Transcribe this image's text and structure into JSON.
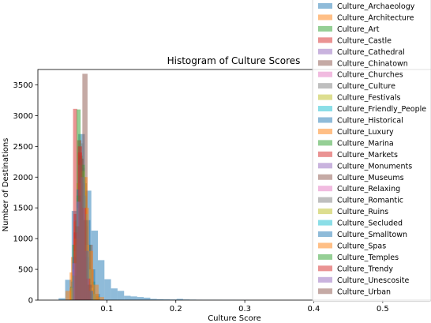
{
  "chart_data": {
    "type": "bar",
    "subtype": "overlaid-histogram",
    "title": "Histogram of Culture Scores",
    "xlabel": "Culture Score",
    "ylabel": "Number of Destinations",
    "xlim": [
      0.0,
      0.57
    ],
    "ylim": [
      0,
      3750
    ],
    "xticks": [
      0.1,
      0.2,
      0.3,
      0.4,
      0.5
    ],
    "yticks": [
      0,
      500,
      1000,
      1500,
      2000,
      2500,
      3000,
      3500
    ],
    "legend_position": "top-right",
    "grid": false,
    "alpha": 0.5,
    "series": [
      {
        "name": "Culture_Archaeology",
        "color": "#1f77b4",
        "bin_edges": [
          0.03,
          0.0395,
          0.049,
          0.0585,
          0.068,
          0.0775,
          0.087,
          0.0965,
          0.106,
          0.1155,
          0.125,
          0.1345,
          0.144,
          0.1535,
          0.163,
          0.1725,
          0.182,
          0.1915,
          0.201,
          0.2105,
          0.22,
          0.2295,
          0.239,
          0.2485,
          0.258,
          0.2675,
          0.277,
          0.2865,
          0.296,
          0.3055,
          0.315
        ],
        "counts": [
          30,
          330,
          1450,
          2700,
          1780,
          1130,
          650,
          340,
          190,
          150,
          70,
          60,
          50,
          40,
          20,
          15,
          12,
          10,
          20,
          10,
          8,
          6,
          5,
          5,
          4,
          3,
          3,
          2,
          2,
          1
        ]
      },
      {
        "name": "Culture_Architecture",
        "color": "#ff7f0e",
        "bin_edges": [
          0.046,
          0.052,
          0.058,
          0.064,
          0.07,
          0.076,
          0.082
        ],
        "counts": [
          450,
          1280,
          2150,
          1750,
          620,
          180
        ]
      },
      {
        "name": "Culture_Art",
        "color": "#2ca02c",
        "bin_edges": [
          0.047,
          0.053,
          0.059,
          0.065,
          0.071,
          0.077,
          0.083,
          0.089
        ],
        "counts": [
          220,
          1100,
          2350,
          1900,
          900,
          300,
          60
        ]
      },
      {
        "name": "Culture_Castle",
        "color": "#d62728",
        "bin_edges": [
          0.051,
          0.057,
          0.063,
          0.069,
          0.075,
          0.081
        ],
        "counts": [
          3110,
          2600,
          1550,
          500,
          120
        ]
      },
      {
        "name": "Culture_Cathedral",
        "color": "#9467bd",
        "bin_edges": [
          0.05,
          0.056,
          0.062,
          0.068,
          0.074,
          0.08
        ],
        "counts": [
          650,
          1650,
          2150,
          900,
          250
        ]
      },
      {
        "name": "Culture_Chinatown",
        "color": "#8c564b",
        "bin_edges": [
          0.057,
          0.0645,
          0.072,
          0.0795
        ],
        "counts": [
          1800,
          3680,
          900
        ]
      },
      {
        "name": "Culture_Churches",
        "color": "#e377c2",
        "bin_edges": [
          0.05,
          0.056,
          0.062,
          0.068,
          0.074
        ],
        "counts": [
          700,
          1600,
          1500,
          300
        ]
      },
      {
        "name": "Culture_Culture",
        "color": "#7f7f7f",
        "bin_edges": [
          0.054,
          0.06,
          0.066,
          0.072,
          0.078
        ],
        "counts": [
          1400,
          2550,
          1200,
          200
        ]
      },
      {
        "name": "Culture_Festivals",
        "color": "#bcbd22",
        "bin_edges": [
          0.052,
          0.058,
          0.064,
          0.07,
          0.076,
          0.082
        ],
        "counts": [
          400,
          2100,
          2000,
          500,
          80
        ]
      },
      {
        "name": "Culture_Friendly_People",
        "color": "#17becf",
        "bin_edges": [
          0.05,
          0.056,
          0.062,
          0.068,
          0.074,
          0.08
        ],
        "counts": [
          500,
          1600,
          1900,
          700,
          150
        ]
      },
      {
        "name": "Culture_Historical",
        "color": "#1f77b4",
        "bin_edges": [
          0.048,
          0.055,
          0.062,
          0.069,
          0.076,
          0.083,
          0.09
        ],
        "counts": [
          300,
          1200,
          2000,
          1300,
          500,
          100
        ]
      },
      {
        "name": "Culture_Luxury",
        "color": "#ff7f0e",
        "bin_edges": [
          0.04,
          0.048,
          0.056,
          0.064,
          0.072,
          0.08,
          0.088,
          0.096
        ],
        "counts": [
          150,
          700,
          1900,
          2000,
          800,
          250,
          50
        ]
      },
      {
        "name": "Culture_Marina",
        "color": "#2ca02c",
        "bin_edges": [
          0.05,
          0.056,
          0.062,
          0.068,
          0.074,
          0.08
        ],
        "counts": [
          900,
          3100,
          2000,
          600,
          100
        ]
      },
      {
        "name": "Culture_Markets",
        "color": "#d62728",
        "bin_edges": [
          0.052,
          0.058,
          0.064,
          0.07,
          0.076
        ],
        "counts": [
          1400,
          2500,
          1400,
          300
        ]
      },
      {
        "name": "Culture_Monuments",
        "color": "#9467bd",
        "bin_edges": [
          0.05,
          0.056,
          0.062,
          0.068,
          0.074,
          0.08
        ],
        "counts": [
          600,
          1700,
          1900,
          800,
          150
        ]
      },
      {
        "name": "Culture_Museums",
        "color": "#8c564b",
        "bin_edges": [
          0.054,
          0.06,
          0.066,
          0.072,
          0.078
        ],
        "counts": [
          1300,
          2300,
          1200,
          250
        ]
      },
      {
        "name": "Culture_Relaxing",
        "color": "#e377c2",
        "bin_edges": [
          0.05,
          0.056,
          0.062,
          0.068,
          0.074,
          0.08
        ],
        "counts": [
          500,
          1500,
          1800,
          900,
          200
        ]
      },
      {
        "name": "Culture_Romantic",
        "color": "#7f7f7f",
        "bin_edges": [
          0.052,
          0.058,
          0.064,
          0.07,
          0.076
        ],
        "counts": [
          800,
          2200,
          1700,
          400
        ]
      },
      {
        "name": "Culture_Ruins",
        "color": "#bcbd22",
        "bin_edges": [
          0.05,
          0.056,
          0.062,
          0.068,
          0.074,
          0.08
        ],
        "counts": [
          400,
          1500,
          2100,
          900,
          200
        ]
      },
      {
        "name": "Culture_Secluded",
        "color": "#17becf",
        "bin_edges": [
          0.048,
          0.054,
          0.06,
          0.066,
          0.072,
          0.078,
          0.084
        ],
        "counts": [
          200,
          900,
          1800,
          1400,
          500,
          100
        ]
      },
      {
        "name": "Culture_Smalltown",
        "color": "#1f77b4",
        "bin_edges": [
          0.05,
          0.056,
          0.062,
          0.068,
          0.074,
          0.08
        ],
        "counts": [
          700,
          1800,
          1900,
          700,
          150
        ]
      },
      {
        "name": "Culture_Spas",
        "color": "#ff7f0e",
        "bin_edges": [
          0.046,
          0.053,
          0.06,
          0.067,
          0.074,
          0.081,
          0.088
        ],
        "counts": [
          200,
          1000,
          1900,
          1500,
          500,
          100
        ]
      },
      {
        "name": "Culture_Temples",
        "color": "#2ca02c",
        "bin_edges": [
          0.05,
          0.056,
          0.062,
          0.068,
          0.074,
          0.08
        ],
        "counts": [
          400,
          1700,
          2200,
          800,
          150
        ]
      },
      {
        "name": "Culture_Trendy",
        "color": "#d62728",
        "bin_edges": [
          0.052,
          0.058,
          0.064,
          0.07,
          0.076
        ],
        "counts": [
          1100,
          2400,
          1500,
          350
        ]
      },
      {
        "name": "Culture_Unescosite",
        "color": "#9467bd",
        "bin_edges": [
          0.05,
          0.056,
          0.062,
          0.068,
          0.074,
          0.08
        ],
        "counts": [
          600,
          1600,
          2000,
          800,
          150
        ]
      },
      {
        "name": "Culture_Urban",
        "color": "#8c564b",
        "bin_edges": [
          0.054,
          0.06,
          0.066,
          0.072,
          0.078
        ],
        "counts": [
          1200,
          2300,
          1300,
          250
        ]
      }
    ]
  }
}
